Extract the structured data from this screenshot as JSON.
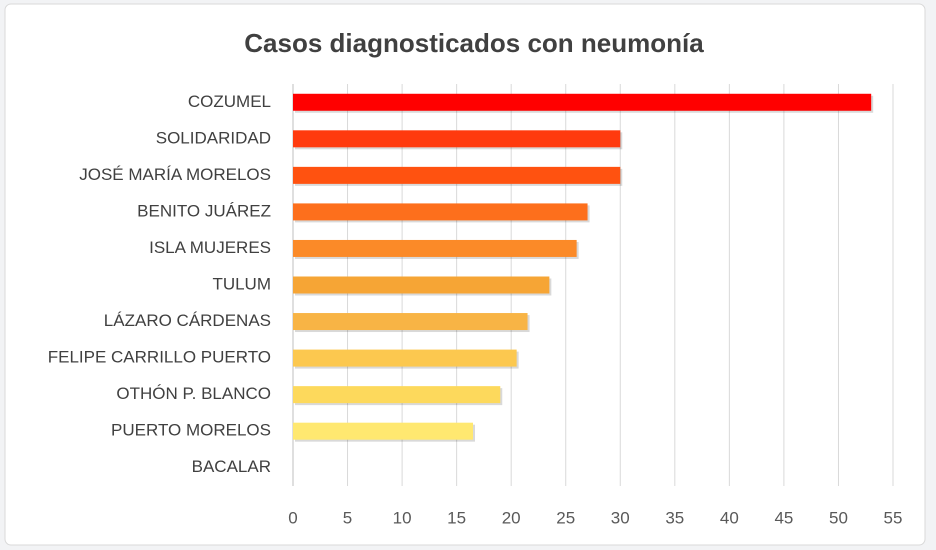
{
  "chart_data": {
    "type": "bar",
    "orientation": "horizontal",
    "title": "Casos diagnosticados con neumonía",
    "categories": [
      "COZUMEL",
      "SOLIDARIDAD",
      "JOSÉ MARÍA MORELOS",
      "BENITO JUÁREZ",
      "ISLA MUJERES",
      "TULUM",
      "LÁZARO CÁRDENAS",
      "FELIPE CARRILLO PUERTO",
      "OTHÓN P. BLANCO",
      "PUERTO MORELOS",
      "BACALAR"
    ],
    "values": [
      53,
      30,
      30,
      27,
      26,
      23.5,
      21.5,
      20.5,
      19,
      16.5,
      0
    ],
    "colors": [
      "#ff0000",
      "#ff3a0e",
      "#ff5210",
      "#fd6f1c",
      "#fb8a28",
      "#f6a535",
      "#f8b445",
      "#fcc84f",
      "#fdd95c",
      "#ffe870",
      "#fff07a"
    ],
    "xlim": [
      0,
      55
    ],
    "xticks": [
      0,
      5,
      10,
      15,
      20,
      25,
      30,
      35,
      40,
      45,
      50,
      55
    ],
    "grid": true
  }
}
